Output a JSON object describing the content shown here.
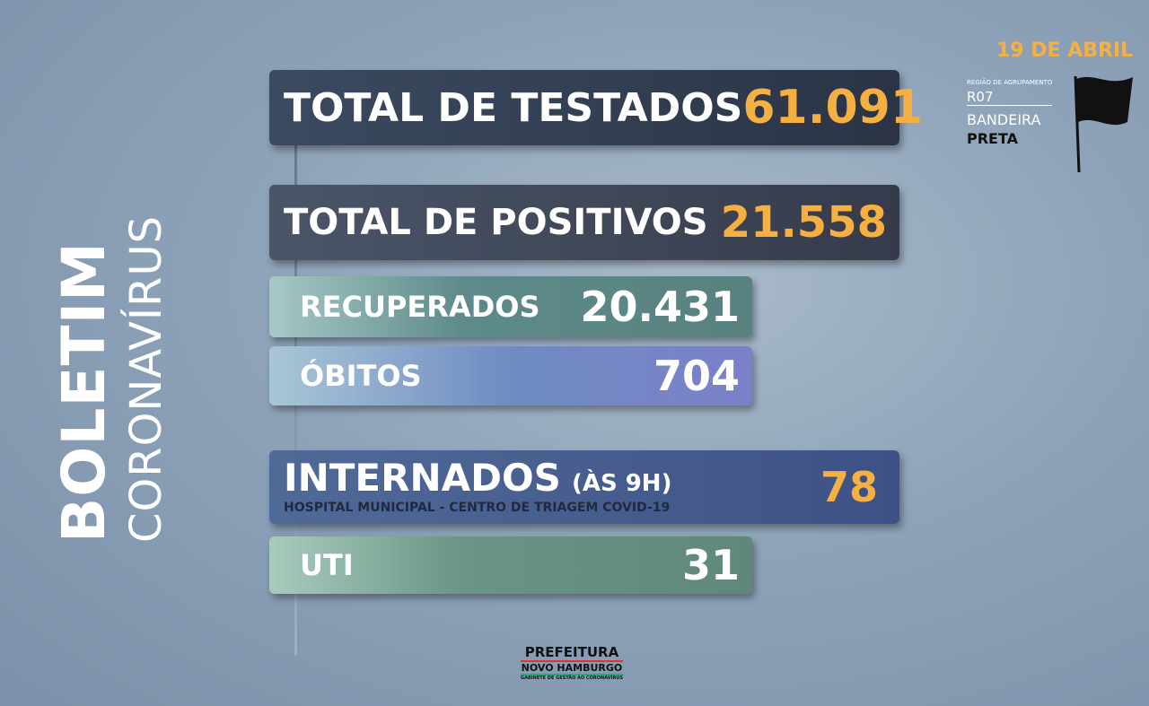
{
  "side_title": {
    "main": "BOLETIM",
    "sub": "CORONAVÍRUS"
  },
  "header": {
    "date": "19 DE ABRIL",
    "region_label": "REGIÃO DE AGRUPAMENTO",
    "region": "R07",
    "flag_line1": "BANDEIRA",
    "flag_line2": "PRETA"
  },
  "rows": [
    {
      "label": "TOTAL DE TESTADOS",
      "value": "61.091"
    },
    {
      "label": "TOTAL DE POSITIVOS",
      "value": "21.558"
    },
    {
      "label": "RECUPERADOS",
      "value": "20.431"
    },
    {
      "label": "ÓBITOS",
      "value": "704"
    },
    {
      "label": "INTERNADOS",
      "note": "(ÀS 9H)",
      "sub": "HOSPITAL MUNICIPAL - CENTRO DE TRIAGEM COVID-19",
      "value": "78"
    },
    {
      "label": "UTI",
      "value": "31"
    }
  ],
  "footer": {
    "line1": "PREFEITURA",
    "line2": "NOVO HAMBURGO",
    "line3": "GABINETE DE GESTÃO AO CORONAVÍRUS"
  }
}
